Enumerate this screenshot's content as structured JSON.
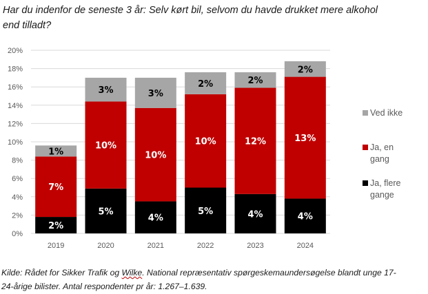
{
  "chart_data": {
    "type": "bar",
    "stacked": true,
    "title": "Har du indenfor de seneste 3 år: Selv kørt bil, selvom du havde drukket mere alkohol end tilladt?",
    "title_lines": [
      "Har du indenfor de seneste 3 år: Selv kørt bil, selvom du havde drukket mere alkohol",
      "end tilladt?"
    ],
    "xlabel": "",
    "ylabel": "",
    "categories": [
      "2019",
      "2020",
      "2021",
      "2022",
      "2023",
      "2024"
    ],
    "ylim": [
      0,
      20
    ],
    "yticks": [
      "0%",
      "2%",
      "4%",
      "6%",
      "8%",
      "10%",
      "12%",
      "14%",
      "16%",
      "18%",
      "20%"
    ],
    "grid": true,
    "legend_position": "right",
    "series": [
      {
        "name": "Ja, flere gange",
        "legend_lines": [
          "Ja, flere",
          "gange"
        ],
        "color": "#000000",
        "label_color": "#ffffff",
        "values": [
          1.8,
          4.9,
          3.5,
          5.0,
          4.3,
          3.8
        ],
        "labels": [
          "2%",
          "5%",
          "4%",
          "5%",
          "4%",
          "4%"
        ]
      },
      {
        "name": "Ja, en gang",
        "legend_lines": [
          "Ja, en",
          "gang"
        ],
        "color": "#c00000",
        "label_color": "#ffffff",
        "values": [
          6.6,
          9.5,
          10.2,
          10.2,
          11.6,
          13.3
        ],
        "labels": [
          "7%",
          "10%",
          "10%",
          "10%",
          "12%",
          "13%"
        ]
      },
      {
        "name": "Ved ikke",
        "legend_lines": [
          "Ved ikke"
        ],
        "color": "#a6a6a6",
        "label_color": "#000000",
        "values": [
          1.2,
          2.6,
          3.3,
          2.4,
          1.7,
          1.7
        ],
        "labels": [
          "1%",
          "3%",
          "3%",
          "2%",
          "2%",
          "2%"
        ]
      }
    ],
    "source_note": "Kilde: Rådet for Sikker Trafik og Wilke. National repræsentativ spørgeskemaundersøgelse blandt unge 17-24-årige bilister. Antal respondenter pr år: 1.267–1.639."
  },
  "source": {
    "prefix": "Kilde: Rådet for Sikker Trafik og ",
    "underlined": "Wilke",
    "line1_rest": ". National repræsentativ spørgeskemaundersøgelse blandt unge 17-",
    "line2": "24-årige bilister. Antal respondenter pr år: 1.267–1.639."
  }
}
